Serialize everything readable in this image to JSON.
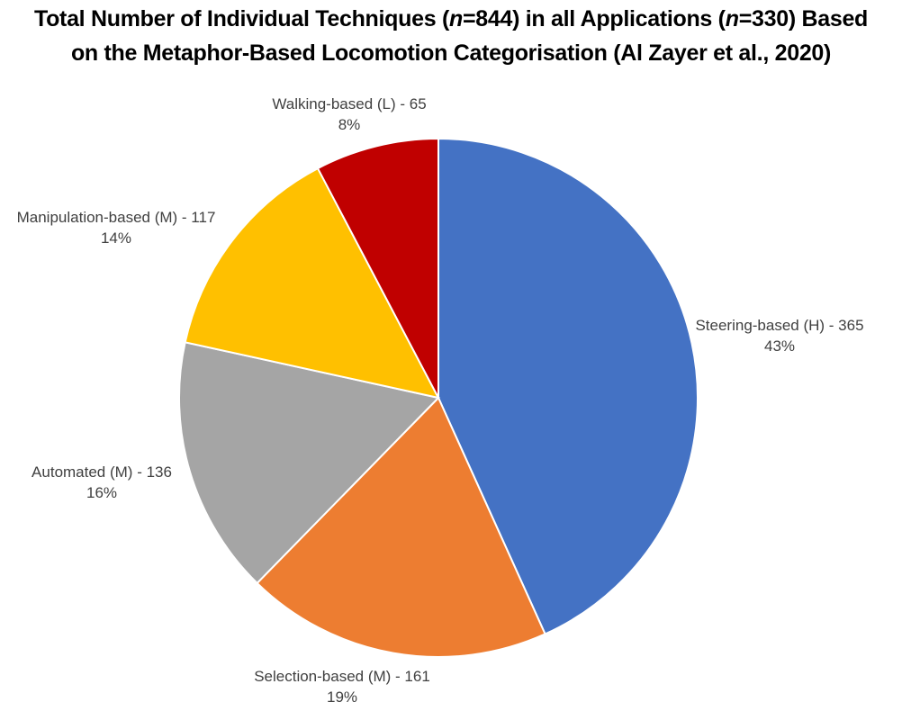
{
  "chart_data": {
    "type": "pie",
    "title": "Total Number of Individual Techniques (n=844) in all Applications (n=330) Based on the Metaphor-Based Locomotion Categorisation (Al Zayer et al., 2020)",
    "title_lines": [
      {
        "pre": "Total Number of Individual Techniques (",
        "it1": "n",
        "mid": "=844) in all Applications (",
        "it2": "n",
        "post": "=330) Based"
      },
      {
        "text": "on the Metaphor-Based Locomotion Categorisation (Al Zayer et al., 2020)"
      }
    ],
    "total": 844,
    "categories": [
      "Steering-based (H)",
      "Selection-based (M)",
      "Automated (M)",
      "Manipulation-based (M)",
      "Walking-based (L)"
    ],
    "values": [
      365,
      161,
      136,
      117,
      65
    ],
    "percentages": [
      "43%",
      "19%",
      "16%",
      "14%",
      "8%"
    ],
    "colors": [
      "#4472C4",
      "#ED7D31",
      "#A5A5A5",
      "#FFC000",
      "#C00000"
    ],
    "labels": [
      {
        "name": "Steering-based (H) - 365",
        "pct": "43%"
      },
      {
        "name": "Selection-based (M) - 161",
        "pct": "19%"
      },
      {
        "name": "Automated (M) - 136",
        "pct": "16%"
      },
      {
        "name": "Manipulation-based (M) - 117",
        "pct": "14%"
      },
      {
        "name": "Walking-based (L) - 65",
        "pct": "8%"
      }
    ],
    "start_angle": "12 o'clock, clockwise",
    "legend": "none (data labels outside slices)"
  }
}
